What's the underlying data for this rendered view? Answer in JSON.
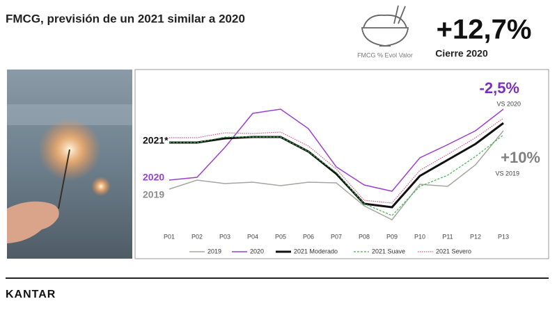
{
  "header": {
    "title": "FMCG, previsión de un 2021 similar a 2020"
  },
  "kpi": {
    "caption": "FMCG % Evol Valor",
    "value": "+12,7%",
    "label": "Cierre 2020"
  },
  "chart_data": {
    "type": "line",
    "categories": [
      "P01",
      "P02",
      "P03",
      "P04",
      "P05",
      "P06",
      "P07",
      "P08",
      "P09",
      "P10",
      "P11",
      "P12",
      "P13"
    ],
    "ylim": [
      60,
      260
    ],
    "series": [
      {
        "name": "2019",
        "color": "#a6a6a0",
        "style": "solid",
        "width": 1.5,
        "values": [
          128,
          141,
          136,
          138,
          133,
          138,
          137,
          104,
          84,
          135,
          132,
          163,
          212
        ]
      },
      {
        "name": "2020",
        "color": "#9b3fd1",
        "style": "solid",
        "width": 1.5,
        "values": [
          141,
          145,
          188,
          237,
          243,
          215,
          160,
          134,
          125,
          173,
          192,
          212,
          243
        ]
      },
      {
        "name": "2021 Moderado",
        "color": "#111111",
        "style": "solid",
        "width": 3,
        "values": [
          195,
          195,
          201,
          203,
          203,
          182,
          150,
          107,
          102,
          147,
          170,
          193,
          223
        ]
      },
      {
        "name": "2021 Suave",
        "color": "#3cb44b",
        "style": "dashed",
        "width": 1.2,
        "values": [
          195,
          195,
          203,
          203,
          203,
          182,
          152,
          107,
          90,
          132,
          148,
          175,
          206
        ]
      },
      {
        "name": "2021 Severo",
        "color": "#e0507a",
        "style": "dotted",
        "width": 1.2,
        "values": [
          202,
          202,
          209,
          208,
          210,
          190,
          157,
          112,
          108,
          155,
          178,
          202,
          230
        ]
      }
    ],
    "annotations": [
      {
        "text": "-2,5%",
        "color": "#7b2fbf"
      },
      {
        "text": "VS 2020",
        "color": "#404040"
      },
      {
        "text": "+10%",
        "color": "#808080"
      },
      {
        "text": "VS 2019",
        "color": "#404040"
      },
      {
        "text": "2021*",
        "color": "#111111"
      },
      {
        "text": "2020",
        "color": "#9b3fd1"
      },
      {
        "text": "2019",
        "color": "#8c8c8c"
      }
    ]
  },
  "footer": {
    "brand": "KANTAR"
  }
}
